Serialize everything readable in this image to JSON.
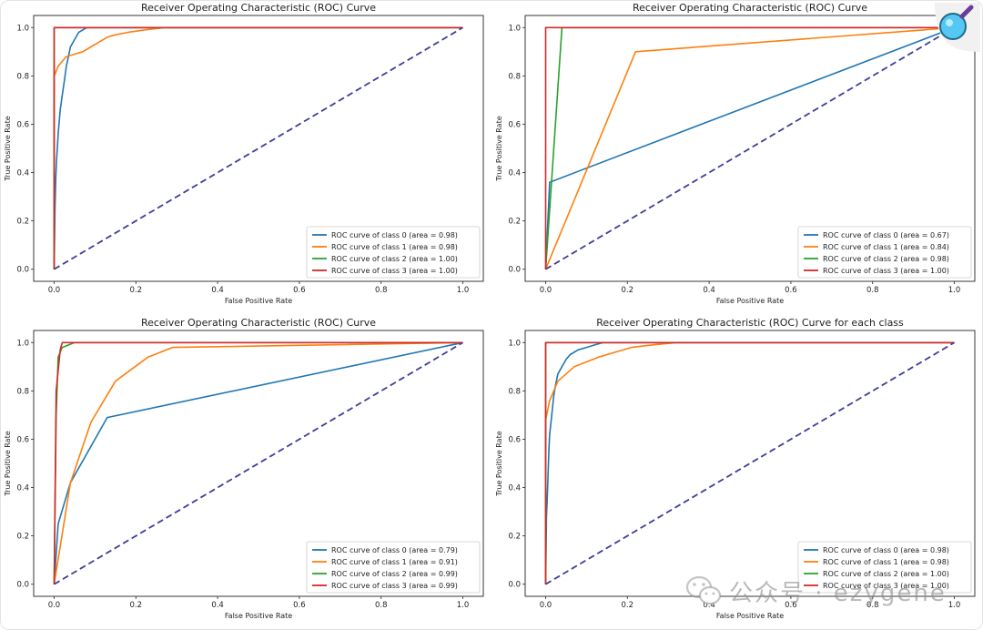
{
  "colors": {
    "class0": "#1f77b4",
    "class1": "#ff7f0e",
    "class2": "#2ca02c",
    "class3": "#d62728",
    "diagonal": "#3f3d99"
  },
  "watermark": {
    "icon": "wechat-icon",
    "text": "公众号 · ezygene"
  },
  "magnifier": {
    "icon": "magnifier-icon"
  },
  "chart_data": [
    {
      "type": "line",
      "title": "Receiver Operating Characteristic (ROC) Curve",
      "xlabel": "False Positive Rate",
      "ylabel": "True Positive Rate",
      "xlim": [
        -0.05,
        1.05
      ],
      "ylim": [
        -0.05,
        1.05
      ],
      "xticks": [
        "0.0",
        "0.2",
        "0.4",
        "0.6",
        "0.8",
        "1.0"
      ],
      "yticks": [
        "0.0",
        "0.2",
        "0.4",
        "0.6",
        "0.8",
        "1.0"
      ],
      "legend": "lower right",
      "series": [
        {
          "name": "ROC curve of class 0 (area = 0.98)",
          "color_key": "class0",
          "x": [
            0,
            0.002,
            0.004,
            0.006,
            0.008,
            0.01,
            0.012,
            0.015,
            0.02,
            0.025,
            0.03,
            0.035,
            0.04,
            0.05,
            0.06,
            0.07,
            0.08,
            1.0
          ],
          "y": [
            0,
            0.25,
            0.38,
            0.45,
            0.5,
            0.56,
            0.6,
            0.66,
            0.72,
            0.78,
            0.84,
            0.88,
            0.92,
            0.95,
            0.98,
            0.99,
            1.0,
            1.0
          ]
        },
        {
          "name": "ROC curve of class 1 (area = 0.98)",
          "color_key": "class1",
          "x": [
            0,
            0,
            0.005,
            0.01,
            0.02,
            0.03,
            0.05,
            0.07,
            0.09,
            0.11,
            0.13,
            0.15,
            0.18,
            0.22,
            0.27,
            1.0
          ],
          "y": [
            0,
            0.8,
            0.82,
            0.84,
            0.86,
            0.88,
            0.89,
            0.9,
            0.92,
            0.94,
            0.96,
            0.97,
            0.98,
            0.99,
            1.0,
            1.0
          ]
        },
        {
          "name": "ROC curve of class 2 (area = 1.00)",
          "color_key": "class2",
          "x": [
            0,
            0,
            1
          ],
          "y": [
            0,
            1,
            1
          ]
        },
        {
          "name": "ROC curve of class 3 (area = 1.00)",
          "color_key": "class3",
          "x": [
            0,
            0,
            1
          ],
          "y": [
            0,
            1,
            1
          ]
        }
      ]
    },
    {
      "type": "line",
      "title": "Receiver Operating Characteristic (ROC) Curve",
      "xlabel": "False Positive Rate",
      "ylabel": "True Positive Rate",
      "xlim": [
        -0.05,
        1.05
      ],
      "ylim": [
        -0.05,
        1.05
      ],
      "xticks": [
        "0.0",
        "0.2",
        "0.4",
        "0.6",
        "0.8",
        "1.0"
      ],
      "yticks": [
        "0.0",
        "0.2",
        "0.4",
        "0.6",
        "0.8",
        "1.0"
      ],
      "legend": "lower right",
      "series": [
        {
          "name": "ROC curve of class 0 (area = 0.67)",
          "color_key": "class0",
          "x": [
            0,
            0.01,
            1
          ],
          "y": [
            0,
            0.36,
            1
          ]
        },
        {
          "name": "ROC curve of class 1 (area = 0.84)",
          "color_key": "class1",
          "x": [
            0,
            0.22,
            1
          ],
          "y": [
            0,
            0.9,
            1
          ]
        },
        {
          "name": "ROC curve of class 2 (area = 0.98)",
          "color_key": "class2",
          "x": [
            0,
            0.04,
            1
          ],
          "y": [
            0,
            1,
            1
          ]
        },
        {
          "name": "ROC curve of class 3 (area = 1.00)",
          "color_key": "class3",
          "x": [
            0,
            0,
            1
          ],
          "y": [
            0,
            1,
            1
          ]
        }
      ]
    },
    {
      "type": "line",
      "title": "Receiver Operating Characteristic (ROC) Curve",
      "xlabel": "False Positive Rate",
      "ylabel": "True Positive Rate",
      "xlim": [
        -0.05,
        1.05
      ],
      "ylim": [
        -0.05,
        1.05
      ],
      "xticks": [
        "0.0",
        "0.2",
        "0.4",
        "0.6",
        "0.8",
        "1.0"
      ],
      "yticks": [
        "0.0",
        "0.2",
        "0.4",
        "0.6",
        "0.8",
        "1.0"
      ],
      "legend": "lower right",
      "series": [
        {
          "name": "ROC curve of class 0 (area = 0.79)",
          "color_key": "class0",
          "x": [
            0,
            0.01,
            0.04,
            0.13,
            1
          ],
          "y": [
            0,
            0.25,
            0.42,
            0.69,
            1
          ]
        },
        {
          "name": "ROC curve of class 1 (area = 0.91)",
          "color_key": "class1",
          "x": [
            0,
            0.04,
            0.09,
            0.15,
            0.23,
            0.29,
            1
          ],
          "y": [
            0,
            0.42,
            0.67,
            0.84,
            0.94,
            0.98,
            1
          ]
        },
        {
          "name": "ROC curve of class 2 (area = 0.99)",
          "color_key": "class2",
          "x": [
            0,
            0.005,
            0.01,
            0.02,
            0.05,
            0.1,
            1
          ],
          "y": [
            0,
            0.7,
            0.94,
            0.98,
            1,
            1,
            1
          ]
        },
        {
          "name": "ROC curve of class 3 (area = 0.99)",
          "color_key": "class3",
          "x": [
            0,
            0.005,
            0.015,
            0.02,
            1
          ],
          "y": [
            0,
            0.8,
            0.97,
            1,
            1
          ]
        }
      ]
    },
    {
      "type": "line",
      "title": "Receiver Operating Characteristic (ROC) Curve for each class",
      "xlabel": "False Positive Rate",
      "ylabel": "True Positive Rate",
      "xlim": [
        -0.05,
        1.05
      ],
      "ylim": [
        -0.05,
        1.05
      ],
      "xticks": [
        "0.0",
        "0.2",
        "0.4",
        "0.6",
        "0.8",
        "1.0"
      ],
      "yticks": [
        "0.0",
        "0.2",
        "0.4",
        "0.6",
        "0.8",
        "1.0"
      ],
      "legend": "lower right",
      "series": [
        {
          "name": "ROC curve of class 0 (area = 0.98)",
          "color_key": "class0",
          "x": [
            0,
            0.002,
            0.004,
            0.006,
            0.008,
            0.01,
            0.015,
            0.02,
            0.025,
            0.03,
            0.04,
            0.05,
            0.06,
            0.08,
            0.1,
            0.12,
            0.14,
            1.0
          ],
          "y": [
            0,
            0.28,
            0.36,
            0.45,
            0.55,
            0.62,
            0.7,
            0.78,
            0.83,
            0.87,
            0.9,
            0.93,
            0.95,
            0.97,
            0.98,
            0.99,
            1.0,
            1.0
          ]
        },
        {
          "name": "ROC curve of class 1 (area = 0.98)",
          "color_key": "class1",
          "x": [
            0,
            0,
            0.005,
            0.01,
            0.02,
            0.03,
            0.05,
            0.07,
            0.1,
            0.13,
            0.17,
            0.21,
            0.26,
            0.32,
            1.0
          ],
          "y": [
            0,
            0.68,
            0.72,
            0.76,
            0.8,
            0.84,
            0.87,
            0.9,
            0.92,
            0.94,
            0.96,
            0.98,
            0.99,
            1.0,
            1.0
          ]
        },
        {
          "name": "ROC curve of class 2 (area = 1.00)",
          "color_key": "class2",
          "x": [
            0,
            0,
            1
          ],
          "y": [
            0,
            1,
            1
          ]
        },
        {
          "name": "ROC curve of class 3 (area = 1.00)",
          "color_key": "class3",
          "x": [
            0,
            0,
            1
          ],
          "y": [
            0,
            1,
            1
          ]
        }
      ]
    }
  ]
}
